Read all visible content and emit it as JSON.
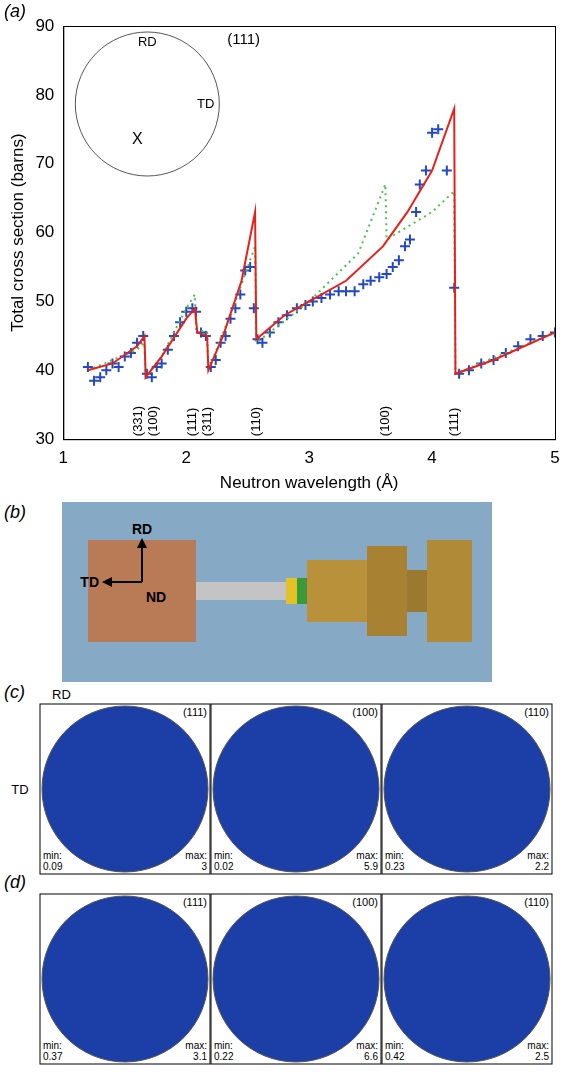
{
  "chart_data": {
    "type": "scatter",
    "panel_label": "(a)",
    "x_label": "Neutron wavelength (Å)",
    "y_label": "Total cross section (barns)",
    "xlim": [
      1,
      5
    ],
    "xticks": [
      1,
      2,
      3,
      4,
      5
    ],
    "ylim": [
      30,
      90
    ],
    "yticks": [
      30,
      40,
      50,
      60,
      70,
      80,
      90
    ],
    "grid": false,
    "series": [
      {
        "type": "scatter",
        "marker": "cross",
        "color": "#2348c4",
        "x": [
          1.2,
          1.25,
          1.3,
          1.35,
          1.4,
          1.45,
          1.5,
          1.55,
          1.6,
          1.65,
          1.68,
          1.72,
          1.76,
          1.8,
          1.85,
          1.9,
          1.95,
          2.0,
          2.05,
          2.08,
          2.12,
          2.16,
          2.2,
          2.24,
          2.28,
          2.32,
          2.36,
          2.4,
          2.44,
          2.48,
          2.52,
          2.55,
          2.58,
          2.62,
          2.68,
          2.75,
          2.82,
          2.9,
          2.97,
          3.03,
          3.1,
          3.17,
          3.24,
          3.3,
          3.37,
          3.44,
          3.5,
          3.57,
          3.63,
          3.68,
          3.73,
          3.78,
          3.82,
          3.87,
          3.9,
          3.95,
          4.0,
          4.05,
          4.12,
          4.18,
          4.22,
          4.3,
          4.4,
          4.5,
          4.6,
          4.7,
          4.8,
          4.9,
          5.0
        ],
        "values": [
          40.5,
          38.5,
          39,
          40,
          41,
          40.5,
          42,
          42.5,
          44,
          45,
          39.5,
          39,
          40.5,
          41,
          43,
          45,
          47,
          48.5,
          49,
          48.5,
          45.5,
          45,
          40.5,
          41.5,
          44,
          45,
          47.5,
          49,
          51,
          54.5,
          55,
          49,
          44.5,
          44,
          45.5,
          47,
          48,
          49,
          49.5,
          50,
          50.5,
          51,
          51.5,
          51.5,
          51.5,
          52.5,
          53,
          53.5,
          54,
          55,
          56,
          58,
          59,
          63,
          67,
          69,
          74.5,
          75,
          69,
          52,
          39.5,
          40,
          41,
          41.5,
          42.5,
          43.5,
          44.5,
          45,
          45.5
        ]
      },
      {
        "type": "line",
        "line_style": "solid",
        "color": "#e8201a",
        "x": [
          1.2,
          1.4,
          1.6,
          1.66,
          1.67,
          1.8,
          2.0,
          2.07,
          2.09,
          2.17,
          2.18,
          2.3,
          2.45,
          2.56,
          2.57,
          2.8,
          3.0,
          3.3,
          3.6,
          3.62,
          3.8,
          4.0,
          4.18,
          4.19,
          4.5,
          5.0
        ],
        "values": [
          40,
          41,
          43.5,
          45,
          39,
          42,
          47.5,
          49,
          45.5,
          45,
          40,
          45,
          53,
          63,
          44.5,
          48,
          50,
          53,
          58,
          58.5,
          63,
          69,
          78,
          39.5,
          41.5,
          45.5
        ]
      },
      {
        "type": "line",
        "line_style": "dotted",
        "color": "#4cc04c",
        "x": [
          1.2,
          1.6,
          1.66,
          1.67,
          1.8,
          2.0,
          2.07,
          2.08,
          2.17,
          2.18,
          2.4,
          2.56,
          2.57,
          3.0,
          3.4,
          3.62,
          3.63,
          4.0,
          4.18,
          4.19,
          5.0
        ],
        "values": [
          40,
          43,
          44,
          39,
          42,
          49,
          51,
          46,
          45.5,
          40,
          50,
          58,
          44,
          50,
          57,
          67,
          59,
          63,
          66,
          39.5,
          45.5
        ]
      }
    ],
    "annotations": [
      {
        "x": 1.61,
        "text": "(331)"
      },
      {
        "x": 1.73,
        "text": "(100)"
      },
      {
        "x": 2.05,
        "text": "(111)"
      },
      {
        "x": 2.17,
        "text": "(311)"
      },
      {
        "x": 2.57,
        "text": "(110)"
      },
      {
        "x": 3.62,
        "text": "(100)"
      },
      {
        "x": 4.18,
        "text": "(111)"
      }
    ],
    "inset": {
      "title": "(111)",
      "top": "RD",
      "side": "TD",
      "mark": "X"
    }
  },
  "photo": {
    "panel_label": "(b)",
    "up": "RD",
    "left": "TD",
    "normal": "ND"
  },
  "pole_figures": [
    {
      "panel_label": "(c)",
      "top": "RD",
      "side": "TD",
      "min_label": "min:",
      "max_label": "max:",
      "maps": [
        {
          "title": "(111)",
          "min": 0.09,
          "max": 3
        },
        {
          "title": "(100)",
          "min": 0.02,
          "max": 5.9
        },
        {
          "title": "(110)",
          "min": 0.23,
          "max": 2.2
        }
      ]
    },
    {
      "panel_label": "(d)",
      "min_label": "min:",
      "max_label": "max:",
      "maps": [
        {
          "title": "(111)",
          "min": 0.37,
          "max": 3.1
        },
        {
          "title": "(100)",
          "min": 0.22,
          "max": 6.6
        },
        {
          "title": "(110)",
          "min": 0.42,
          "max": 2.5
        }
      ]
    }
  ]
}
